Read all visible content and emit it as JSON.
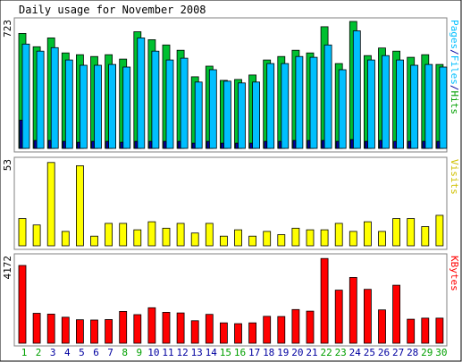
{
  "chart_data": {
    "type": "bar",
    "title": "Daily usage for November 2008",
    "categories": [
      "1",
      "2",
      "3",
      "4",
      "5",
      "6",
      "7",
      "8",
      "9",
      "10",
      "11",
      "12",
      "13",
      "14",
      "15",
      "16",
      "17",
      "18",
      "19",
      "20",
      "21",
      "22",
      "23",
      "24",
      "25",
      "26",
      "27",
      "28",
      "29",
      "30"
    ],
    "weekend_days": [
      "1",
      "2",
      "8",
      "9",
      "15",
      "16",
      "22",
      "23",
      "29",
      "30"
    ],
    "panels": [
      {
        "key": "pages_files_hits",
        "right_label_parts": [
          "Pages",
          "/",
          "Files",
          "/",
          "Hits"
        ],
        "max_label": "723",
        "ymax": 723,
        "series": [
          {
            "name": "Hits",
            "color": "#00c030",
            "values": [
              650,
              575,
              625,
              540,
              530,
              520,
              530,
              505,
              660,
              615,
              585,
              555,
              405,
              465,
              385,
              390,
              415,
              500,
              520,
              555,
              540,
              688,
              480,
              718,
              525,
              568,
              550,
              515,
              530,
              475
            ]
          },
          {
            "name": "Files",
            "color": "#00bfff",
            "values": [
              590,
              550,
              570,
              500,
              470,
              470,
              475,
              460,
              625,
              550,
              500,
              510,
              375,
              445,
              380,
              370,
              375,
              480,
              480,
              520,
              515,
              585,
              445,
              665,
              500,
              525,
              500,
              470,
              475,
              460
            ]
          },
          {
            "name": "Pages",
            "color": "#0000a0",
            "values": [
              160,
              45,
              45,
              40,
              35,
              40,
              40,
              35,
              40,
              40,
              40,
              40,
              30,
              40,
              30,
              30,
              30,
              40,
              40,
              45,
              45,
              45,
              40,
              50,
              40,
              45,
              40,
              40,
              40,
              40
            ]
          }
        ]
      },
      {
        "key": "visits",
        "right_label_parts": [
          "Visits"
        ],
        "max_label": "53",
        "ymax": 53,
        "series": [
          {
            "name": "Visits",
            "color": "#ffff00",
            "values": [
              17,
              13,
              52,
              9,
              50,
              6,
              14,
              14,
              10,
              15,
              11,
              14,
              8,
              14,
              6,
              10,
              6,
              9,
              7,
              11,
              10,
              10,
              14,
              9,
              15,
              9,
              17,
              17,
              12,
              19
            ]
          }
        ]
      },
      {
        "key": "kbytes",
        "right_label_parts": [
          "KBytes"
        ],
        "max_label": "4172",
        "ymax": 4172,
        "series": [
          {
            "name": "KBytes",
            "color": "#ff0000",
            "values": [
              3780,
              1455,
              1415,
              1265,
              1145,
              1130,
              1150,
              1545,
              1390,
              1725,
              1505,
              1475,
              1095,
              1405,
              990,
              950,
              990,
              1310,
              1300,
              1640,
              1560,
              4120,
              2580,
              3200,
              2620,
              1620,
              2820,
              1170,
              1220,
              1220
            ]
          }
        ]
      }
    ],
    "colors": {
      "weekday": "#0000a0",
      "weekend": "#00a000",
      "text": "#000000",
      "panel_border": "#808080"
    }
  }
}
